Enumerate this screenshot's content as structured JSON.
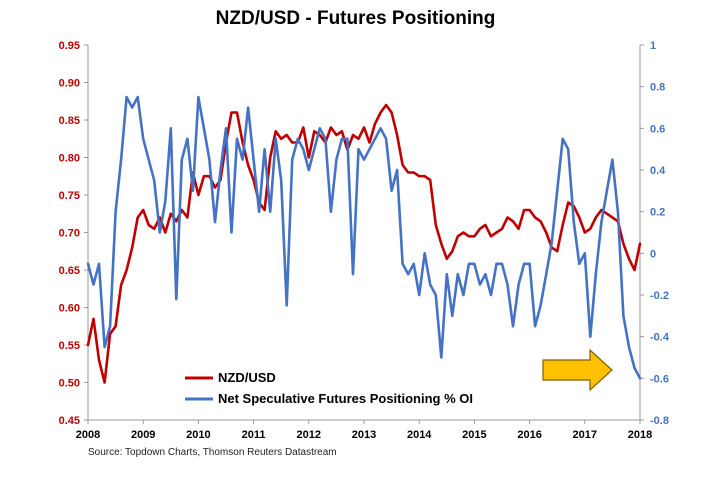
{
  "title": "NZD/USD - Futures Positioning",
  "source": "Source: Topdown Charts, Thomson Reuters Datastream",
  "colors": {
    "nzdusd": "#c00000",
    "positioning": "#4472c4",
    "arrow_fill": "#ffc000",
    "arrow_stroke": "#7f6000",
    "axis": "#999999"
  },
  "arrow": {
    "icon": "right-arrow-icon",
    "points_to": "latest positioning reading"
  },
  "chart_data": {
    "type": "line",
    "title": "NZD/USD - Futures Positioning",
    "xlabel": "",
    "ylabel": "",
    "grid": false,
    "legend_placement": "bottom-left",
    "x_ticks": [
      "2008",
      "2009",
      "2010",
      "2011",
      "2012",
      "2013",
      "2014",
      "2015",
      "2016",
      "2017",
      "2018"
    ],
    "x_range": [
      2008.0,
      2018.0
    ],
    "left_axis": {
      "ylim": [
        0.45,
        0.95
      ],
      "ticks": [
        "0.95",
        "0.90",
        "0.85",
        "0.80",
        "0.75",
        "0.70",
        "0.65",
        "0.60",
        "0.55",
        "0.50",
        "0.45"
      ]
    },
    "right_axis": {
      "ylim": [
        -0.8,
        1.0
      ],
      "ticks": [
        "1",
        "0.8",
        "0.6",
        "0.4",
        "0.2",
        "0",
        "-0.2",
        "-0.4",
        "-0.6",
        "-0.8"
      ]
    },
    "series": [
      {
        "name": "NZD/USD",
        "axis": "left",
        "x": [
          2008.0,
          2008.1,
          2008.2,
          2008.3,
          2008.4,
          2008.5,
          2008.6,
          2008.7,
          2008.8,
          2008.9,
          2009.0,
          2009.1,
          2009.2,
          2009.3,
          2009.4,
          2009.5,
          2009.6,
          2009.7,
          2009.8,
          2009.9,
          2010.0,
          2010.1,
          2010.2,
          2010.3,
          2010.4,
          2010.5,
          2010.6,
          2010.7,
          2010.8,
          2010.9,
          2011.0,
          2011.1,
          2011.2,
          2011.3,
          2011.4,
          2011.5,
          2011.6,
          2011.7,
          2011.8,
          2011.9,
          2012.0,
          2012.1,
          2012.2,
          2012.3,
          2012.4,
          2012.5,
          2012.6,
          2012.7,
          2012.8,
          2012.9,
          2013.0,
          2013.1,
          2013.2,
          2013.3,
          2013.4,
          2013.5,
          2013.6,
          2013.7,
          2013.8,
          2013.9,
          2014.0,
          2014.1,
          2014.2,
          2014.3,
          2014.4,
          2014.5,
          2014.6,
          2014.7,
          2014.8,
          2014.9,
          2015.0,
          2015.1,
          2015.2,
          2015.3,
          2015.4,
          2015.5,
          2015.6,
          2015.7,
          2015.8,
          2015.9,
          2016.0,
          2016.1,
          2016.2,
          2016.3,
          2016.4,
          2016.5,
          2016.6,
          2016.7,
          2016.8,
          2016.9,
          2017.0,
          2017.1,
          2017.2,
          2017.3,
          2017.4,
          2017.5,
          2017.6,
          2017.7,
          2017.8,
          2017.9,
          2018.0
        ],
        "values": [
          0.55,
          0.585,
          0.53,
          0.5,
          0.565,
          0.575,
          0.63,
          0.65,
          0.68,
          0.72,
          0.73,
          0.71,
          0.705,
          0.72,
          0.7,
          0.725,
          0.715,
          0.73,
          0.72,
          0.78,
          0.75,
          0.775,
          0.775,
          0.76,
          0.77,
          0.82,
          0.86,
          0.86,
          0.82,
          0.79,
          0.77,
          0.74,
          0.73,
          0.8,
          0.835,
          0.825,
          0.83,
          0.82,
          0.82,
          0.84,
          0.8,
          0.835,
          0.83,
          0.82,
          0.84,
          0.83,
          0.835,
          0.81,
          0.83,
          0.825,
          0.84,
          0.82,
          0.845,
          0.86,
          0.87,
          0.86,
          0.83,
          0.79,
          0.78,
          0.78,
          0.775,
          0.775,
          0.77,
          0.71,
          0.685,
          0.665,
          0.675,
          0.695,
          0.7,
          0.695,
          0.695,
          0.705,
          0.71,
          0.695,
          0.7,
          0.705,
          0.72,
          0.715,
          0.705,
          0.73,
          0.73,
          0.72,
          0.715,
          0.7,
          0.68,
          0.675,
          0.71,
          0.74,
          0.735,
          0.72,
          0.7,
          0.705,
          0.72,
          0.73,
          0.725,
          0.72,
          0.715,
          0.685,
          0.665,
          0.65,
          0.685
        ]
      },
      {
        "name": "Net Speculative Futures Positioning % OI",
        "axis": "right",
        "x": [
          2008.0,
          2008.1,
          2008.2,
          2008.3,
          2008.4,
          2008.5,
          2008.6,
          2008.7,
          2008.8,
          2008.9,
          2009.0,
          2009.1,
          2009.2,
          2009.3,
          2009.4,
          2009.5,
          2009.6,
          2009.7,
          2009.8,
          2009.9,
          2010.0,
          2010.1,
          2010.2,
          2010.3,
          2010.4,
          2010.5,
          2010.6,
          2010.7,
          2010.8,
          2010.9,
          2011.0,
          2011.1,
          2011.2,
          2011.3,
          2011.4,
          2011.5,
          2011.6,
          2011.7,
          2011.8,
          2011.9,
          2012.0,
          2012.1,
          2012.2,
          2012.3,
          2012.4,
          2012.5,
          2012.6,
          2012.7,
          2012.8,
          2012.9,
          2013.0,
          2013.1,
          2013.2,
          2013.3,
          2013.4,
          2013.5,
          2013.6,
          2013.7,
          2013.8,
          2013.9,
          2014.0,
          2014.1,
          2014.2,
          2014.3,
          2014.4,
          2014.5,
          2014.6,
          2014.7,
          2014.8,
          2014.9,
          2015.0,
          2015.1,
          2015.2,
          2015.3,
          2015.4,
          2015.5,
          2015.6,
          2015.7,
          2015.8,
          2015.9,
          2016.0,
          2016.1,
          2016.2,
          2016.3,
          2016.4,
          2016.5,
          2016.6,
          2016.7,
          2016.8,
          2016.9,
          2017.0,
          2017.1,
          2017.2,
          2017.3,
          2017.4,
          2017.5,
          2017.6,
          2017.7,
          2017.8,
          2017.9,
          2018.0
        ],
        "values": [
          -0.05,
          -0.15,
          -0.05,
          -0.45,
          -0.35,
          0.2,
          0.45,
          0.75,
          0.7,
          0.75,
          0.55,
          0.45,
          0.35,
          0.1,
          0.25,
          0.6,
          -0.22,
          0.45,
          0.55,
          0.3,
          0.75,
          0.6,
          0.45,
          0.15,
          0.4,
          0.6,
          0.1,
          0.55,
          0.45,
          0.7,
          0.45,
          0.2,
          0.5,
          0.2,
          0.55,
          0.35,
          -0.25,
          0.45,
          0.55,
          0.5,
          0.4,
          0.5,
          0.6,
          0.55,
          0.2,
          0.45,
          0.55,
          0.55,
          -0.1,
          0.5,
          0.45,
          0.5,
          0.55,
          0.6,
          0.55,
          0.3,
          0.4,
          -0.05,
          -0.1,
          -0.05,
          -0.2,
          0.0,
          -0.15,
          -0.2,
          -0.5,
          -0.1,
          -0.3,
          -0.1,
          -0.2,
          -0.05,
          -0.05,
          -0.15,
          -0.1,
          -0.2,
          -0.05,
          -0.05,
          -0.15,
          -0.35,
          -0.15,
          -0.05,
          -0.05,
          -0.35,
          -0.25,
          -0.1,
          0.05,
          0.3,
          0.55,
          0.5,
          0.15,
          -0.05,
          0.0,
          -0.4,
          -0.1,
          0.15,
          0.3,
          0.45,
          0.2,
          -0.3,
          -0.45,
          -0.55,
          -0.6
        ]
      }
    ]
  }
}
